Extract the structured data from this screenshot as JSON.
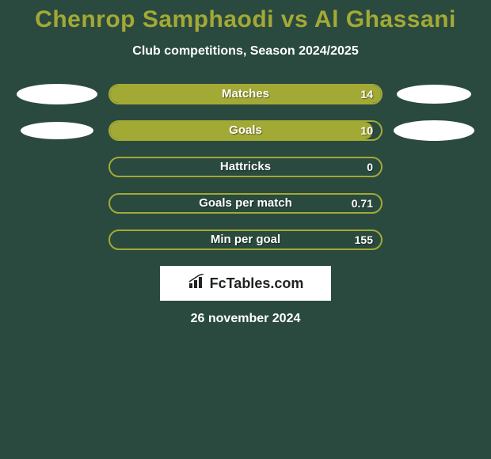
{
  "title": "Chenrop Samphaodi vs Al Ghassani",
  "subtitle": "Club competitions, Season 2024/2025",
  "bar_border_color": "#a3a935",
  "bar_fill_color": "#a3a935",
  "bar_text_color": "#ffffff",
  "background_color": "#2a4a3f",
  "title_color": "#a3a935",
  "ellipse_color": "#ffffff",
  "rows": [
    {
      "label": "Matches",
      "value": "14",
      "fill_percent": 100,
      "left_ellipse": {
        "w": 102,
        "h": 26
      },
      "right_ellipse": {
        "w": 94,
        "h": 24
      }
    },
    {
      "label": "Goals",
      "value": "10",
      "fill_percent": 97,
      "left_ellipse": {
        "w": 92,
        "h": 22
      },
      "right_ellipse": {
        "w": 102,
        "h": 26
      }
    },
    {
      "label": "Hattricks",
      "value": "0",
      "fill_percent": 0,
      "left_ellipse": null,
      "right_ellipse": null
    },
    {
      "label": "Goals per match",
      "value": "0.71",
      "fill_percent": 0,
      "left_ellipse": null,
      "right_ellipse": null
    },
    {
      "label": "Min per goal",
      "value": "155",
      "fill_percent": 0,
      "left_ellipse": null,
      "right_ellipse": null
    }
  ],
  "logo_text": "FcTables.com",
  "date": "26 november 2024"
}
